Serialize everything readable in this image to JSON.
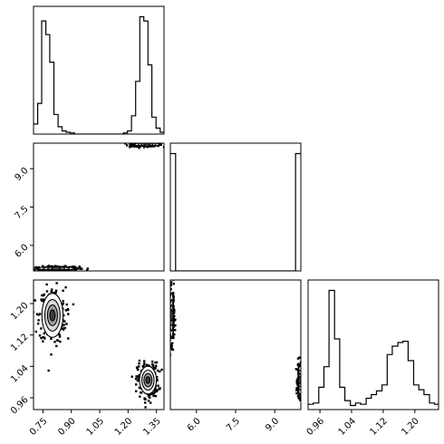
{
  "chart_data": {
    "type": "corner",
    "colors": {
      "line": "#000000",
      "background": "#ffffff"
    },
    "panels": [
      {
        "id": "hist-1",
        "type": "histogram",
        "row": 0,
        "col": 0,
        "xlim": [
          0.7,
          1.39
        ],
        "show_x_ticks": false,
        "show_y_ticks": false,
        "bins": [
          0.7,
          0.722,
          0.743,
          0.765,
          0.786,
          0.808,
          0.83,
          0.851,
          0.873,
          0.894,
          0.916,
          0.938,
          0.959,
          0.981,
          1.002,
          1.024,
          1.046,
          1.067,
          1.089,
          1.11,
          1.132,
          1.154,
          1.175,
          1.197,
          1.218,
          1.24,
          1.262,
          1.283,
          1.305,
          1.326,
          1.348,
          1.37,
          1.39
        ],
        "counts": [
          0.07,
          0.22,
          0.82,
          0.72,
          0.52,
          0.14,
          0.05,
          0.02,
          0.01,
          0.005,
          0,
          0,
          0,
          0,
          0,
          0,
          0,
          0,
          0,
          0,
          0,
          0,
          0.005,
          0.02,
          0.13,
          0.38,
          0.85,
          0.82,
          0.5,
          0.12,
          0.04,
          0.01
        ]
      },
      {
        "id": "scatter-2-1",
        "type": "scatter-contour",
        "row": 1,
        "col": 0,
        "xlim": [
          0.7,
          1.39
        ],
        "ylim": [
          5.0,
          10.0
        ],
        "yticks": [
          6.0,
          7.5,
          9.0
        ],
        "ytick_labels": [
          "6.0",
          "7.5",
          "9.0"
        ],
        "show_x_ticks": false,
        "clusters": [
          {
            "x_center": 0.82,
            "x_spread": 0.06,
            "y_center": 5.1,
            "y_spread": 0.04
          },
          {
            "x_center": 1.3,
            "x_spread": 0.04,
            "y_center": 9.95,
            "y_spread": 0.04
          }
        ]
      },
      {
        "id": "hist-2",
        "type": "histogram",
        "row": 1,
        "col": 1,
        "xlim": [
          5.0,
          10.0
        ],
        "show_x_ticks": false,
        "show_y_ticks": false,
        "bins": [
          5.0,
          5.2,
          5.4,
          5.6,
          5.8,
          6.0,
          6.2,
          6.4,
          6.6,
          6.8,
          7.0,
          7.2,
          7.4,
          7.6,
          7.8,
          8.0,
          8.2,
          8.4,
          8.6,
          8.8,
          9.0,
          9.2,
          9.4,
          9.6,
          9.8,
          10.0
        ],
        "counts": [
          1.0,
          0,
          0,
          0,
          0,
          0,
          0,
          0,
          0,
          0,
          0,
          0,
          0,
          0,
          0,
          0,
          0,
          0,
          0,
          0,
          0,
          0,
          0,
          0,
          1.0
        ]
      },
      {
        "id": "scatter-3-1",
        "type": "scatter-contour",
        "row": 2,
        "col": 0,
        "xlim": [
          0.7,
          1.39
        ],
        "ylim": [
          0.93,
          1.26
        ],
        "xticks": [
          0.75,
          0.9,
          1.05,
          1.2,
          1.35
        ],
        "xtick_labels": [
          "0.75",
          "0.90",
          "1.05",
          "1.20",
          "1.35"
        ],
        "yticks": [
          0.96,
          1.04,
          1.12,
          1.2
        ],
        "ytick_labels": [
          "0.96",
          "1.04",
          "1.12",
          "1.20"
        ],
        "clusters": [
          {
            "x_center": 0.8,
            "x_spread": 0.035,
            "y_center": 1.17,
            "y_spread": 0.035
          },
          {
            "x_center": 1.305,
            "x_spread": 0.028,
            "y_center": 1.005,
            "y_spread": 0.022
          }
        ]
      },
      {
        "id": "scatter-3-2",
        "type": "scatter-contour",
        "row": 2,
        "col": 1,
        "xlim": [
          5.0,
          10.0
        ],
        "ylim": [
          0.93,
          1.26
        ],
        "xticks": [
          6.0,
          7.5,
          9.0
        ],
        "xtick_labels": [
          "6.0",
          "7.5",
          "9.0"
        ],
        "show_y_ticks": false,
        "clusters": [
          {
            "x_center": 5.05,
            "x_spread": 0.05,
            "y_center": 1.17,
            "y_spread": 0.035
          },
          {
            "x_center": 9.97,
            "x_spread": 0.05,
            "y_center": 1.005,
            "y_spread": 0.022
          }
        ]
      },
      {
        "id": "hist-3",
        "type": "histogram",
        "row": 2,
        "col": 2,
        "xlim": [
          0.93,
          1.26
        ],
        "xticks": [
          0.96,
          1.04,
          1.12,
          1.2
        ],
        "xtick_labels": [
          "0.96",
          "1.04",
          "1.12",
          "1.20"
        ],
        "show_y_ticks": false,
        "bins": [
          0.93,
          0.943,
          0.957,
          0.97,
          0.983,
          0.997,
          1.01,
          1.023,
          1.037,
          1.05,
          1.063,
          1.077,
          1.09,
          1.103,
          1.117,
          1.13,
          1.143,
          1.157,
          1.17,
          1.183,
          1.197,
          1.21,
          1.223,
          1.237,
          1.25,
          1.26
        ],
        "counts": [
          0.04,
          0.05,
          0.18,
          0.35,
          0.98,
          0.58,
          0.18,
          0.07,
          0.03,
          0.05,
          0.04,
          0.09,
          0.12,
          0.15,
          0.2,
          0.45,
          0.52,
          0.55,
          0.56,
          0.4,
          0.2,
          0.16,
          0.12,
          0.05,
          0.04
        ]
      }
    ]
  }
}
